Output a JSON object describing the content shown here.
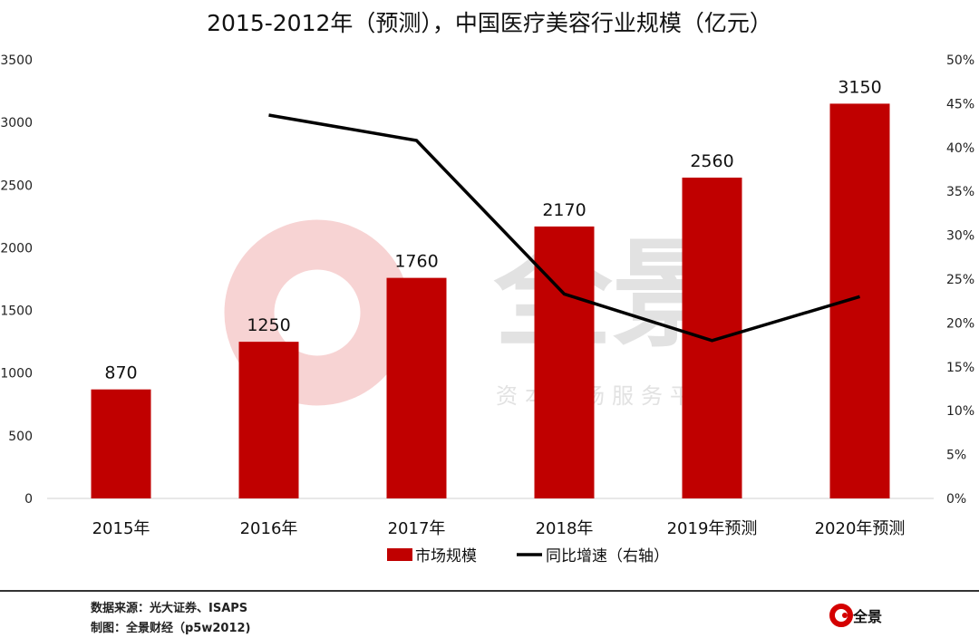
{
  "chart_data": {
    "type": "bar+line",
    "title": "2015-2012年（预测），中国医疗美容行业规模（亿元）",
    "categories": [
      "2015年",
      "2016年",
      "2017年",
      "2018年",
      "2019年预测",
      "2020年预测"
    ],
    "series": [
      {
        "name": "市场规模",
        "type": "bar",
        "axis": "left",
        "values": [
          870,
          1250,
          1760,
          2170,
          2560,
          3150
        ],
        "color": "#c00000"
      },
      {
        "name": "同比增速（右轴）",
        "type": "line",
        "axis": "right",
        "values": [
          null,
          43.7,
          40.8,
          23.3,
          18.0,
          23.0
        ],
        "color": "#000000"
      }
    ],
    "left_axis": {
      "ylim": [
        0,
        3500
      ],
      "ticks": [
        "0",
        "500",
        "1000",
        "1500",
        "2000",
        "2500",
        "3000",
        "3500"
      ]
    },
    "right_axis": {
      "ylim": [
        0,
        50
      ],
      "ticks": [
        "0%",
        "5%",
        "10%",
        "15%",
        "20%",
        "25%",
        "30%",
        "35%",
        "40%",
        "45%",
        "50%"
      ]
    },
    "grid": false,
    "legend": "bottom"
  },
  "watermark": {
    "text": "全景",
    "subtext": "资本市场服务平台"
  },
  "footer": {
    "source": "数据来源：光大证券、ISAPS",
    "made_by": "制图：全景财经（p5w2012)",
    "logo_text": "全景"
  }
}
